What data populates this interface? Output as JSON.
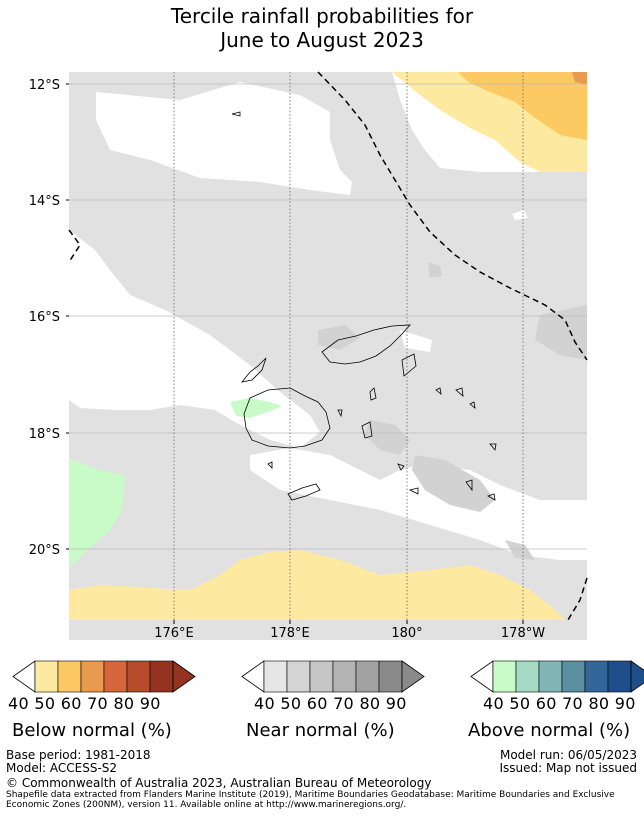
{
  "title": {
    "line1": "Tercile rainfall probabilities for",
    "line2": "June to August 2023"
  },
  "map": {
    "lat_labels": [
      "12°S",
      "14°S",
      "16°S",
      "18°S",
      "20°S"
    ],
    "lon_labels": [
      "176°E",
      "178°E",
      "180°",
      "178°W"
    ],
    "colors": {
      "near_normal_fill": "#e1e1e1",
      "near_normal_dark": "#d2d2d2",
      "below_40": "#fee9a0",
      "below_50": "#fdc963",
      "below_60": "#e89b4f",
      "above_40": "#c9fbc9"
    }
  },
  "colorbars": {
    "below": {
      "title": "Below normal (%)",
      "ticks": [
        "40",
        "50",
        "60",
        "70",
        "80",
        "90"
      ],
      "colors": [
        "#fee9a0",
        "#fdc963",
        "#e89b4f",
        "#d6663a",
        "#b84b2b",
        "#953322"
      ]
    },
    "near": {
      "title": "Near normal (%)",
      "ticks": [
        "40",
        "50",
        "60",
        "70",
        "80",
        "90"
      ],
      "colors": [
        "#e6e6e6",
        "#d4d4d4",
        "#c6c6c6",
        "#b4b4b4",
        "#a2a2a2",
        "#8a8a8a"
      ]
    },
    "above": {
      "title": "Above normal (%)",
      "ticks": [
        "40",
        "50",
        "60",
        "70",
        "80",
        "90"
      ],
      "colors": [
        "#c9fbc9",
        "#a5d9c3",
        "#80b6b6",
        "#5a8fa1",
        "#336699",
        "#1f4f8a"
      ]
    }
  },
  "footer": {
    "base_period": "Base period: 1981-2018",
    "model": "Model: ACCESS-S2",
    "model_run": "Model run: 06/05/2023",
    "issued": "Issued: Map not issued",
    "copyright": "© Commonwealth of Australia 2023, Australian Bureau of Meteorology",
    "source_line1": "Shapefile data extracted from Flanders Marine Institute (2019), Maritime Boundaries Geodatabase: Maritime Boundaries and Exclusive",
    "source_line2": "Economic Zones (200NM), version 11. Available online at http://www.marineregions.org/."
  }
}
